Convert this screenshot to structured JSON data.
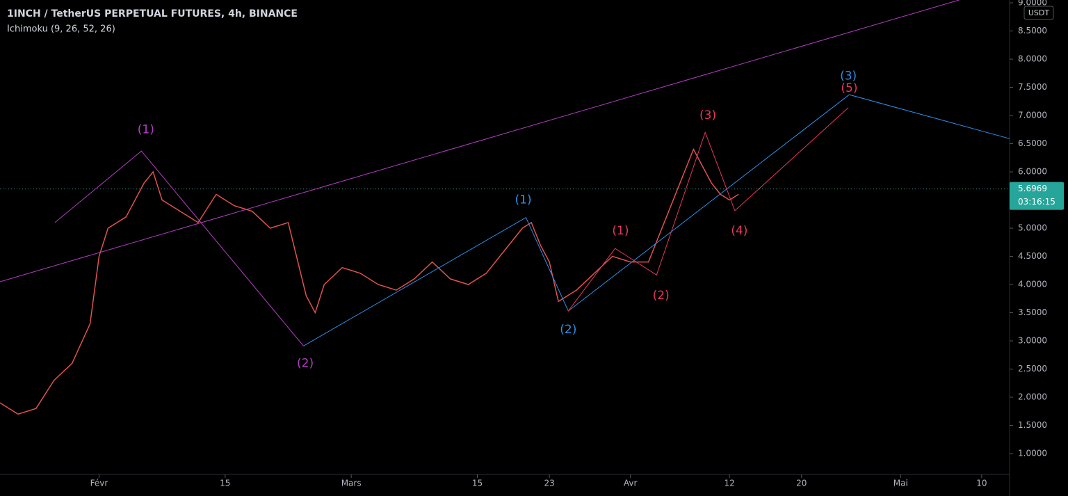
{
  "chart_data": {
    "type": "line",
    "title": "1INCH / TetherUS PERPETUAL FUTURES, 4h, BINANCE",
    "subtitle": "Ichimoku (9, 26, 52, 26)",
    "currency": "USDT",
    "color": "#e0524f",
    "x": [
      20,
      22,
      24,
      26,
      28,
      30,
      31,
      32,
      34,
      36,
      37,
      38,
      40,
      42,
      44,
      46,
      48,
      50,
      52,
      54,
      55,
      56,
      58,
      60,
      62,
      64,
      66,
      68,
      70,
      72,
      74,
      76,
      78,
      79,
      80,
      81,
      82,
      84,
      86,
      88,
      90,
      92,
      94,
      96,
      97,
      98,
      99,
      100,
      101,
      102
    ],
    "values": [
      1.9,
      1.7,
      1.8,
      2.3,
      2.6,
      3.3,
      4.5,
      5.0,
      5.2,
      5.8,
      6.0,
      5.5,
      5.3,
      5.1,
      5.6,
      5.4,
      5.3,
      5.0,
      5.1,
      3.8,
      3.5,
      4.0,
      4.3,
      4.2,
      4.0,
      3.9,
      4.1,
      4.4,
      4.1,
      4.0,
      4.2,
      4.6,
      5.0,
      5.1,
      4.7,
      4.4,
      3.7,
      3.9,
      4.2,
      4.5,
      4.4,
      4.4,
      5.2,
      6.0,
      6.4,
      6.1,
      5.8,
      5.6,
      5.5,
      5.6
    ],
    "current_price": 5.6969,
    "countdown": "03:16:15",
    "xlim": [
      20,
      132.1
    ],
    "ylim": [
      0.63,
      9.05
    ],
    "xticks": [
      {
        "value": 31,
        "label": "Févr"
      },
      {
        "value": 45,
        "label": "15"
      },
      {
        "value": 59,
        "label": "Mars"
      },
      {
        "value": 73,
        "label": "15"
      },
      {
        "value": 81,
        "label": "23"
      },
      {
        "value": 90,
        "label": "Avr"
      },
      {
        "value": 101,
        "label": "12"
      },
      {
        "value": 109,
        "label": "20"
      },
      {
        "value": 120,
        "label": "Mai"
      },
      {
        "value": 129,
        "label": "10"
      }
    ],
    "yticks": [
      {
        "value": 1,
        "label": "1.0000"
      },
      {
        "value": 1.5,
        "label": "1.5000"
      },
      {
        "value": 2,
        "label": "2.0000"
      },
      {
        "value": 2.5,
        "label": "2.5000"
      },
      {
        "value": 3,
        "label": "3.0000"
      },
      {
        "value": 3.5,
        "label": "3.5000"
      },
      {
        "value": 4,
        "label": "4.0000"
      },
      {
        "value": 4.5,
        "label": "4.5000"
      },
      {
        "value": 5,
        "label": "5.0000"
      },
      {
        "value": 5.5,
        "label": "5.5000"
      },
      {
        "value": 6,
        "label": "6.0000"
      },
      {
        "value": 6.5,
        "label": "6.5000"
      },
      {
        "value": 7,
        "label": "7.0000"
      },
      {
        "value": 7.5,
        "label": "7.5000"
      },
      {
        "value": 8,
        "label": "8.0000"
      },
      {
        "value": 8.5,
        "label": "8.5000"
      },
      {
        "value": 9,
        "label": "9.0000"
      }
    ],
    "lines": [
      {
        "color": "#b33fc4",
        "x": [
          20,
          126.5
        ],
        "values": [
          4.05,
          9.05
        ]
      },
      {
        "color": "#b33fc4",
        "x": [
          26.1,
          35.7,
          53.7
        ],
        "values": [
          5.1,
          6.37,
          2.91
        ]
      },
      {
        "color": "#2f8fe8",
        "x": [
          53.7,
          78.4,
          83.1,
          114.3,
          132.1
        ],
        "values": [
          2.91,
          5.19,
          3.53,
          7.37,
          6.59
        ]
      },
      {
        "color": "#e8365f",
        "x": [
          83.1,
          88.3,
          92.9,
          98.3,
          101.6,
          114.2
        ],
        "values": [
          3.53,
          4.64,
          4.17,
          6.7,
          5.31,
          7.14
        ]
      }
    ],
    "annotations": [
      {
        "text": "(1)",
        "x": 36.2,
        "y": 6.75,
        "color": "#b33fc4"
      },
      {
        "text": "(2)",
        "x": 53.9,
        "y": 2.6,
        "color": "#b33fc4"
      },
      {
        "text": "(1)",
        "x": 78.1,
        "y": 5.5,
        "color": "#2f8fe8"
      },
      {
        "text": "(2)",
        "x": 83.1,
        "y": 3.2,
        "color": "#2f8fe8"
      },
      {
        "text": "(3)",
        "x": 114.2,
        "y": 7.7,
        "color": "#2f8fe8"
      },
      {
        "text": "(1)",
        "x": 88.9,
        "y": 4.95,
        "color": "#e8365f"
      },
      {
        "text": "(2)",
        "x": 93.4,
        "y": 3.8,
        "color": "#e8365f"
      },
      {
        "text": "(3)",
        "x": 98.6,
        "y": 7.0,
        "color": "#e8365f"
      },
      {
        "text": "(4)",
        "x": 102.1,
        "y": 4.95,
        "color": "#e8365f"
      },
      {
        "text": "(5)",
        "x": 114.3,
        "y": 7.48,
        "color": "#e8365f"
      }
    ]
  }
}
